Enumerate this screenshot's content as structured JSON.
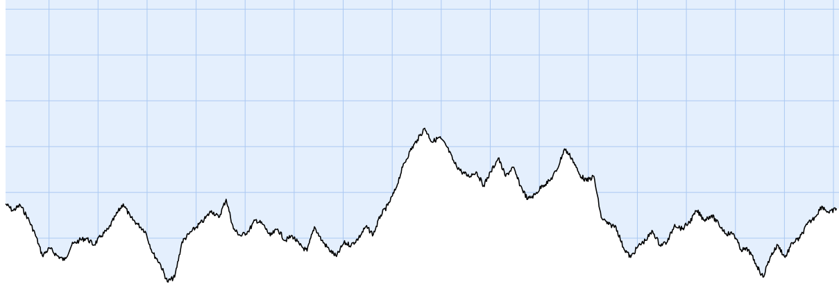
{
  "chart_data": {
    "type": "line",
    "title": "",
    "xlabel": "",
    "ylabel": "",
    "grid": true,
    "fill_above_line": true,
    "colors": {
      "sky_fill": "#e4effd",
      "grid_line": "#aac8f2",
      "line": "#000000",
      "below_fill": "#ffffff"
    },
    "xlim": [
      0,
      17
    ],
    "ylim": [
      0,
      6.2
    ],
    "series": [
      {
        "x": [
          0,
          0.15,
          0.3,
          0.45,
          0.6,
          0.75,
          0.9,
          1.05,
          1.2,
          1.35,
          1.5,
          1.65,
          1.8,
          1.95,
          2.1,
          2.25,
          2.4,
          2.55,
          2.7,
          2.85,
          3.0,
          3.15,
          3.3,
          3.45,
          3.6,
          3.75,
          3.9,
          4.05,
          4.2,
          4.35,
          4.5,
          4.65,
          4.8,
          4.95,
          5.1,
          5.25,
          5.4,
          5.55,
          5.7,
          5.85,
          6.0,
          6.15,
          6.3,
          6.45,
          6.6,
          6.75,
          6.9,
          7.05,
          7.2,
          7.35,
          7.5,
          7.65,
          7.8,
          7.95,
          8.1,
          8.25,
          8.4,
          8.55,
          8.7,
          8.85,
          9.0,
          9.15,
          9.3,
          9.45,
          9.6,
          9.75,
          9.9,
          10.05,
          10.2,
          10.35,
          10.5,
          10.65,
          10.8,
          10.95,
          11.1,
          11.25,
          11.4,
          11.55,
          11.7,
          11.85,
          12.0,
          12.15,
          12.3,
          12.45,
          12.6,
          12.75,
          12.9,
          13.05,
          13.2,
          13.35,
          13.5,
          13.65,
          13.8,
          13.95,
          14.1,
          14.25,
          14.4,
          14.55,
          14.7,
          14.85,
          15.0,
          15.15,
          15.3,
          15.45,
          15.6,
          15.75,
          15.9,
          16.05,
          16.2,
          16.35,
          16.5,
          16.65,
          16.8,
          16.95
        ],
        "y": [
          1.75,
          1.6,
          1.72,
          1.45,
          1.1,
          0.62,
          0.78,
          0.62,
          0.52,
          0.85,
          0.95,
          1.0,
          0.85,
          1.05,
          1.2,
          1.5,
          1.75,
          1.45,
          1.3,
          1.15,
          0.68,
          0.45,
          0.05,
          0.15,
          0.92,
          1.1,
          1.25,
          1.4,
          1.6,
          1.45,
          1.85,
          1.2,
          1.05,
          1.15,
          1.4,
          1.3,
          1.05,
          1.2,
          0.95,
          1.05,
          0.85,
          0.72,
          1.25,
          0.95,
          0.75,
          0.6,
          0.9,
          0.85,
          1.0,
          1.25,
          1.08,
          1.5,
          1.72,
          2.05,
          2.55,
          2.9,
          3.15,
          3.4,
          3.1,
          3.2,
          3.0,
          2.65,
          2.45,
          2.35,
          2.45,
          2.15,
          2.45,
          2.75,
          2.35,
          2.55,
          2.15,
          1.85,
          1.95,
          2.15,
          2.25,
          2.5,
          2.95,
          2.75,
          2.4,
          2.25,
          2.35,
          1.45,
          1.3,
          1.25,
          0.8,
          0.58,
          0.82,
          0.95,
          1.15,
          0.85,
          0.92,
          1.3,
          1.2,
          1.35,
          1.6,
          1.4,
          1.5,
          1.3,
          1.1,
          1.1,
          0.75,
          0.75,
          0.45,
          0.15,
          0.6,
          0.85,
          0.58,
          0.9,
          1.0,
          1.3,
          1.45,
          1.7,
          1.55,
          1.65
        ]
      }
    ]
  }
}
